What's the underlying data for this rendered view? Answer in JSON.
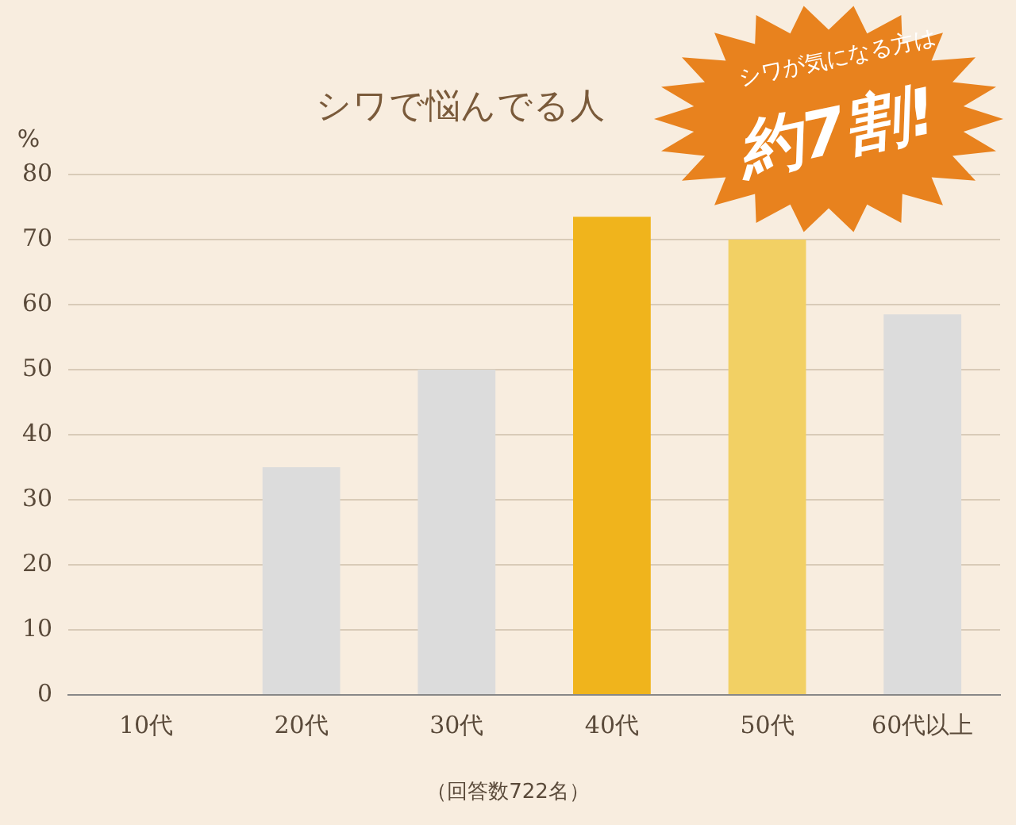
{
  "chart_data": {
    "type": "bar",
    "title": "シワで悩んでる人",
    "ylabel": "%",
    "categories": [
      "10代",
      "20代",
      "30代",
      "40代",
      "50代",
      "60代以上"
    ],
    "values": [
      0,
      35,
      50,
      73.5,
      70,
      58.5
    ],
    "colors": [
      "#dcdcdc",
      "#dcdcdc",
      "#dcdcdc",
      "#f0b41c",
      "#f2d064",
      "#dcdcdc"
    ],
    "ylim": [
      0,
      80
    ],
    "yticks": [
      0,
      10,
      20,
      30,
      40,
      50,
      60,
      70,
      80
    ],
    "grid": "y",
    "annotations": [
      "シワが気になる方は",
      "約7割!",
      "（回答数722名）"
    ]
  }
}
